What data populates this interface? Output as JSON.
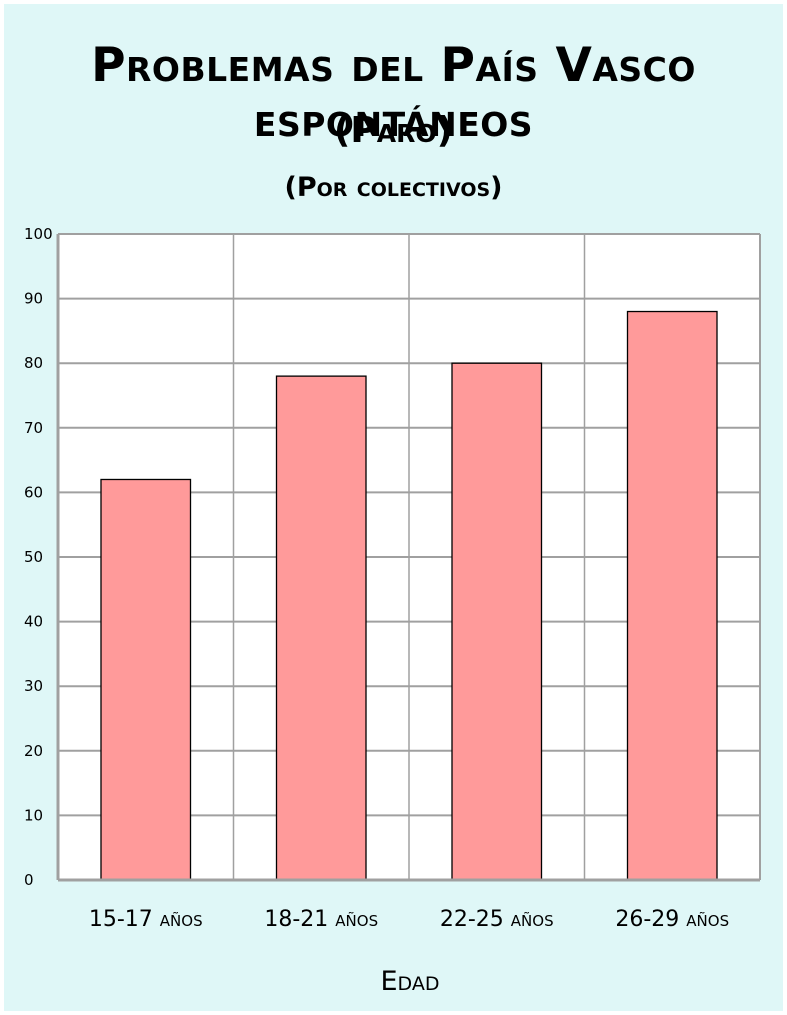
{
  "chart_data": {
    "type": "bar",
    "title": "Problemas del País Vasco espontáneos",
    "subtitle": "(Paro)",
    "subtitle2": "(Por colectivos)",
    "categories": [
      "15-17 años",
      "18-21 años",
      "22-25 años",
      "26-29 años"
    ],
    "values": [
      62,
      78,
      80,
      88
    ],
    "xlabel": "Edad",
    "ylabel": "",
    "ylim": [
      0,
      100
    ],
    "yticks": [
      0,
      10,
      20,
      30,
      40,
      50,
      60,
      70,
      80,
      90,
      100
    ],
    "grid": true,
    "colors": {
      "background": "#dff7f7",
      "plot_area": "#ffffff",
      "bar": "#ff9a9a",
      "bar_outline": "#000000",
      "grid": "#a0a0a0"
    }
  }
}
